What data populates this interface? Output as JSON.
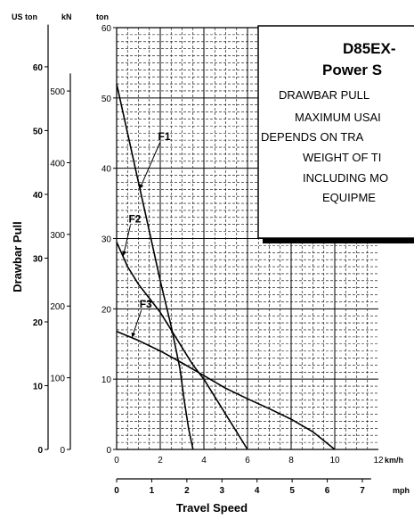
{
  "chart_data": {
    "type": "line",
    "title": "D85EX-",
    "subtitle": "Power S",
    "note_lines": [
      "DRAWBAR PULL",
      "MAXIMUM USAI",
      "DEPENDS ON TRA",
      "WEIGHT OF TI",
      "INCLUDING MO",
      "EQUIPME"
    ],
    "ylabel": "Drawbar Pull",
    "xlabel": "Travel Speed",
    "y_units": {
      "us_ton": "US ton",
      "kn": "kN",
      "ton": "ton"
    },
    "x_units": {
      "kmh": "km/h",
      "mph": "mph"
    },
    "ylim": [
      0,
      60
    ],
    "xlim": [
      0,
      12
    ],
    "ticks": {
      "ton": [
        "0",
        "10",
        "20",
        "30",
        "40",
        "50",
        "60"
      ],
      "kn": [
        "0",
        "100",
        "200",
        "300",
        "400",
        "500"
      ],
      "us_ton": [
        "0",
        "10",
        "20",
        "30",
        "40",
        "50",
        "60"
      ],
      "kmh": [
        "0",
        "2",
        "4",
        "6",
        "8",
        "10",
        "12"
      ],
      "mph": [
        "0",
        "1",
        "2",
        "3",
        "4",
        "5",
        "6",
        "7"
      ]
    },
    "grid": true,
    "series": [
      {
        "name": "F1",
        "x": [
          0,
          0.5,
          1,
          1.5,
          2,
          2.5,
          2.9,
          3.1,
          3.3,
          3.5
        ],
        "y": [
          52,
          45,
          38,
          31,
          24,
          17.5,
          11.5,
          7,
          3,
          0
        ]
      },
      {
        "name": "F2",
        "x": [
          0,
          0.5,
          1,
          1.5,
          2,
          2.5,
          3,
          3.5,
          4,
          4.5,
          5,
          5.5,
          6
        ],
        "y": [
          29.5,
          26,
          23.5,
          21.5,
          19.5,
          17,
          14.5,
          12,
          10,
          7.5,
          5,
          2.5,
          0
        ]
      },
      {
        "name": "F3",
        "x": [
          0,
          1,
          2,
          3,
          4,
          5,
          6,
          7,
          8,
          9,
          10
        ],
        "y": [
          16.8,
          15.5,
          14,
          12.3,
          10.5,
          8.7,
          7.2,
          5.8,
          4.3,
          2.5,
          0
        ]
      }
    ]
  }
}
